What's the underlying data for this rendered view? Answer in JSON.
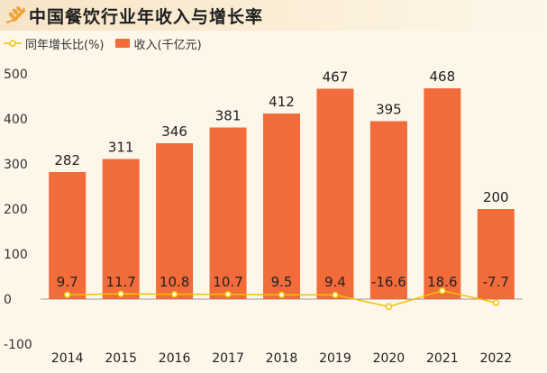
{
  "header": {
    "title": "中国餐饮行业年收入与增长率",
    "logo_icon": "wheat-logo-icon"
  },
  "legend": {
    "line_label": "同年增长比(%)",
    "bar_label": "收入(千亿元)"
  },
  "colors": {
    "bar": "#f26b3a",
    "line": "#f2c200",
    "background": "#fdf6e9"
  },
  "chart_data": {
    "type": "bar",
    "categories": [
      "2014",
      "2015",
      "2016",
      "2017",
      "2018",
      "2019",
      "2020",
      "2021",
      "2022"
    ],
    "series": [
      {
        "name": "收入(千亿元)",
        "type": "bar",
        "values": [
          282,
          311,
          346,
          381,
          412,
          467,
          395,
          468,
          200
        ]
      },
      {
        "name": "同年增长比(%)",
        "type": "line",
        "values": [
          9.7,
          11.7,
          10.8,
          10.7,
          9.5,
          9.4,
          -16.6,
          18.6,
          -7.7
        ]
      }
    ],
    "ylim": [
      -100,
      500
    ],
    "yticks": [
      500,
      400,
      300,
      200,
      100,
      0,
      -100
    ],
    "xlabel": "",
    "ylabel": "",
    "grid": false,
    "legend_position": "top-left"
  }
}
